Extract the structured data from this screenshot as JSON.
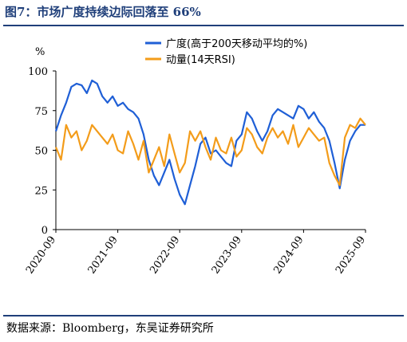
{
  "header": {
    "title": "图7：市场广度持续边际回落至 66%"
  },
  "footer": {
    "source": "数据来源：Bloomberg，东吴证券研究所"
  },
  "chart_data": {
    "type": "line",
    "title": "图7：市场广度持续边际回落至 66%",
    "ylabel": "%",
    "xlabel": "",
    "ylim": [
      0,
      100
    ],
    "yticks": [
      0,
      25,
      50,
      75,
      100
    ],
    "xlim": [
      "2020-09",
      "2025-09"
    ],
    "xticks": [
      "2020-09",
      "2021-09",
      "2022-09",
      "2023-09",
      "2024-09",
      "2025-09"
    ],
    "grid": false,
    "legend_position": "top",
    "colors": {
      "breadth": "#1f5fd6",
      "momentum": "#f39c1a"
    },
    "series": [
      {
        "name": "广度(高于200天移动平均的%)",
        "key": "breadth",
        "x": [
          "2020-09",
          "2020-10",
          "2020-11",
          "2020-12",
          "2021-01",
          "2021-02",
          "2021-03",
          "2021-04",
          "2021-05",
          "2021-06",
          "2021-07",
          "2021-08",
          "2021-09",
          "2021-10",
          "2021-11",
          "2021-12",
          "2022-01",
          "2022-02",
          "2022-03",
          "2022-04",
          "2022-05",
          "2022-06",
          "2022-07",
          "2022-08",
          "2022-09",
          "2022-10",
          "2022-11",
          "2022-12",
          "2023-01",
          "2023-02",
          "2023-03",
          "2023-04",
          "2023-05",
          "2023-06",
          "2023-07",
          "2023-08",
          "2023-09",
          "2023-10",
          "2023-11",
          "2023-12",
          "2024-01",
          "2024-02",
          "2024-03",
          "2024-04",
          "2024-05",
          "2024-06",
          "2024-07",
          "2024-08",
          "2024-09",
          "2024-10",
          "2024-11",
          "2024-12",
          "2025-01",
          "2025-02",
          "2025-03",
          "2025-04",
          "2025-05",
          "2025-06",
          "2025-07",
          "2025-08",
          "2025-09"
        ],
        "values": [
          62,
          72,
          80,
          90,
          92,
          91,
          86,
          94,
          92,
          84,
          80,
          84,
          78,
          80,
          76,
          74,
          70,
          60,
          44,
          34,
          28,
          36,
          44,
          32,
          22,
          16,
          28,
          40,
          54,
          58,
          48,
          50,
          46,
          42,
          40,
          56,
          60,
          74,
          70,
          62,
          56,
          62,
          72,
          76,
          74,
          72,
          70,
          78,
          76,
          70,
          74,
          68,
          64,
          56,
          42,
          26,
          44,
          56,
          62,
          66,
          66
        ]
      },
      {
        "name": "动量(14天RSI)",
        "key": "momentum",
        "x": [
          "2020-09",
          "2020-10",
          "2020-11",
          "2020-12",
          "2021-01",
          "2021-02",
          "2021-03",
          "2021-04",
          "2021-05",
          "2021-06",
          "2021-07",
          "2021-08",
          "2021-09",
          "2021-10",
          "2021-11",
          "2021-12",
          "2022-01",
          "2022-02",
          "2022-03",
          "2022-04",
          "2022-05",
          "2022-06",
          "2022-07",
          "2022-08",
          "2022-09",
          "2022-10",
          "2022-11",
          "2022-12",
          "2023-01",
          "2023-02",
          "2023-03",
          "2023-04",
          "2023-05",
          "2023-06",
          "2023-07",
          "2023-08",
          "2023-09",
          "2023-10",
          "2023-11",
          "2023-12",
          "2024-01",
          "2024-02",
          "2024-03",
          "2024-04",
          "2024-05",
          "2024-06",
          "2024-07",
          "2024-08",
          "2024-09",
          "2024-10",
          "2024-11",
          "2024-12",
          "2025-01",
          "2025-02",
          "2025-03",
          "2025-04",
          "2025-05",
          "2025-06",
          "2025-07",
          "2025-08",
          "2025-09"
        ],
        "values": [
          52,
          44,
          66,
          58,
          62,
          50,
          56,
          66,
          62,
          58,
          54,
          60,
          50,
          48,
          62,
          54,
          44,
          56,
          36,
          44,
          52,
          40,
          60,
          48,
          36,
          42,
          62,
          56,
          62,
          52,
          44,
          58,
          50,
          48,
          58,
          46,
          50,
          64,
          60,
          52,
          48,
          58,
          64,
          58,
          62,
          54,
          66,
          52,
          58,
          64,
          60,
          56,
          58,
          42,
          34,
          28,
          58,
          66,
          64,
          70,
          66
        ]
      }
    ]
  }
}
